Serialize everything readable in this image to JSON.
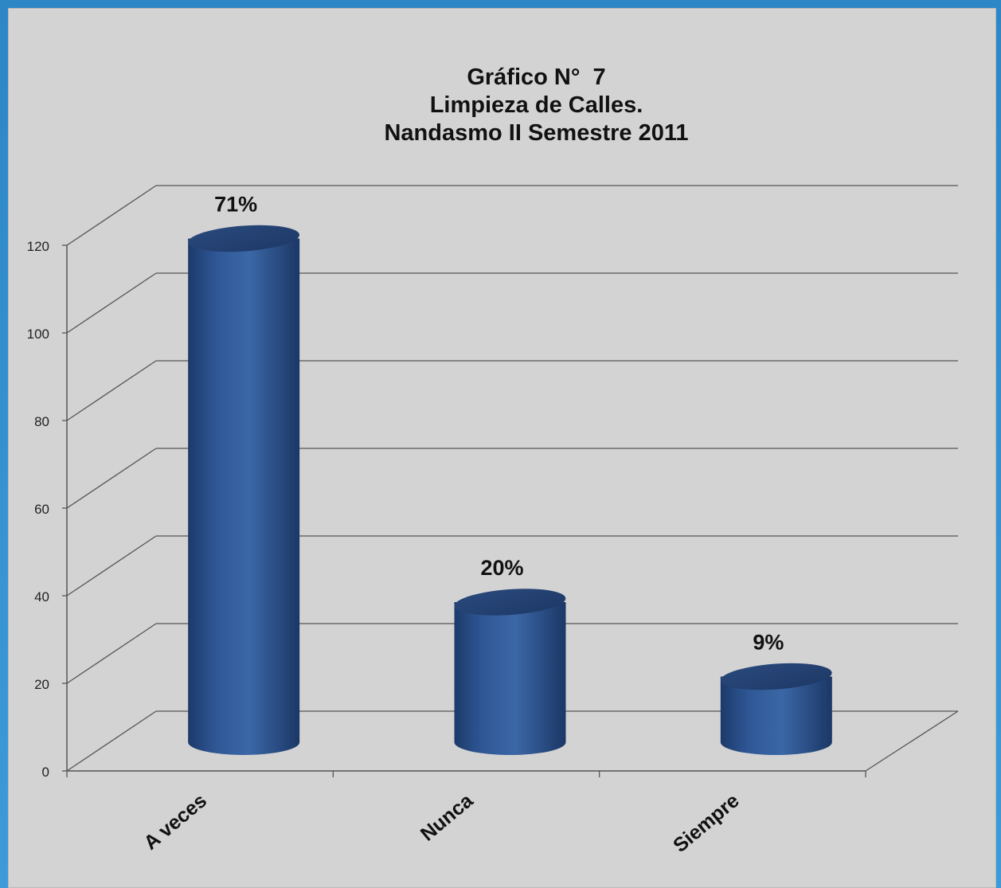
{
  "chart_data": {
    "type": "bar",
    "title": [
      "Gráfico N°  7",
      "Limpieza de Calles.",
      "Nandasmo II Semestre 2011"
    ],
    "categories": [
      "A veces",
      "Nunca",
      "Siempre"
    ],
    "values": [
      115,
      32,
      15
    ],
    "data_labels": [
      "71%",
      "20%",
      "9%"
    ],
    "ylim": [
      0,
      120
    ],
    "yticks": [
      0,
      20,
      40,
      60,
      80,
      100,
      120
    ],
    "grid": true,
    "style": "3d-cylinder",
    "bar_color": "#2f5795"
  }
}
